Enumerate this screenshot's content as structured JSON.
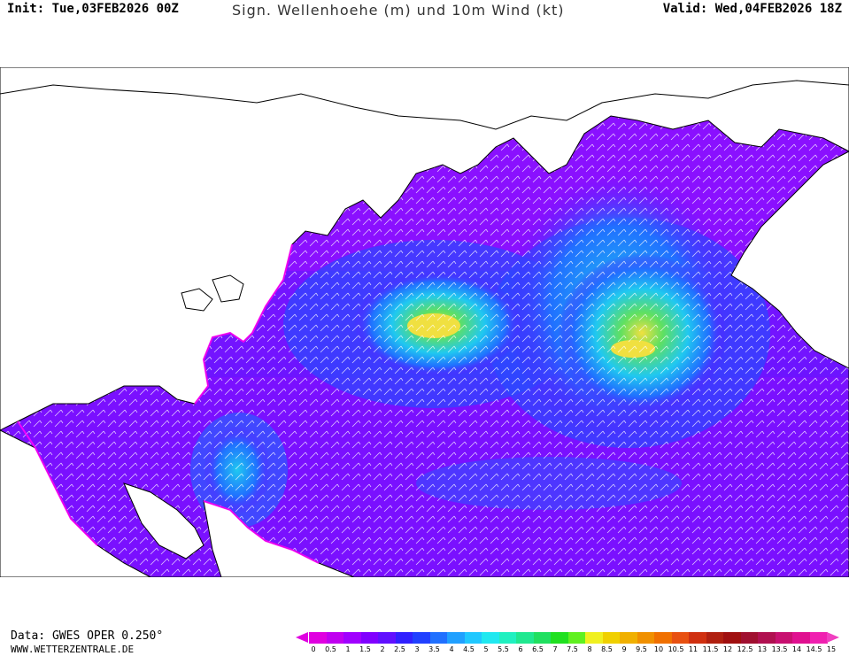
{
  "header": {
    "init": "Init: Tue,03FEB2026 00Z",
    "title": "Sign. Wellenhoehe (m) und 10m Wind (kt)",
    "valid": "Valid: Wed,04FEB2026 18Z"
  },
  "footer": {
    "data_source": "Data: GWES OPER 0.250°",
    "website": "WWW.WETTERZENTRALE.DE"
  },
  "legend": {
    "ticks": [
      "0",
      "0.5",
      "1",
      "1.5",
      "2",
      "2.5",
      "3",
      "3.5",
      "4",
      "4.5",
      "5",
      "5.5",
      "6",
      "6.5",
      "7",
      "7.5",
      "8",
      "8.5",
      "9",
      "9.5",
      "10",
      "10.5",
      "11",
      "11.5",
      "12",
      "12.5",
      "13",
      "13.5",
      "14",
      "14.5",
      "15"
    ],
    "colors": [
      "#e000e0",
      "#c000f0",
      "#a000ff",
      "#8000ff",
      "#6010ff",
      "#3020ff",
      "#2040ff",
      "#2070ff",
      "#20a0ff",
      "#20c8ff",
      "#20e8f0",
      "#20f0c0",
      "#20e890",
      "#20e060",
      "#20e020",
      "#60f020",
      "#f0f020",
      "#f0d000",
      "#f0b000",
      "#f09000",
      "#f07000",
      "#e85010",
      "#d03010",
      "#b02010",
      "#a01010",
      "#a01030",
      "#b01050",
      "#c81070",
      "#e01090",
      "#f020b0",
      "#f040c0"
    ]
  },
  "map": {
    "land_color": "#ffffff",
    "coast_color": "#000000",
    "wind_barb_color": "#ffffff"
  }
}
